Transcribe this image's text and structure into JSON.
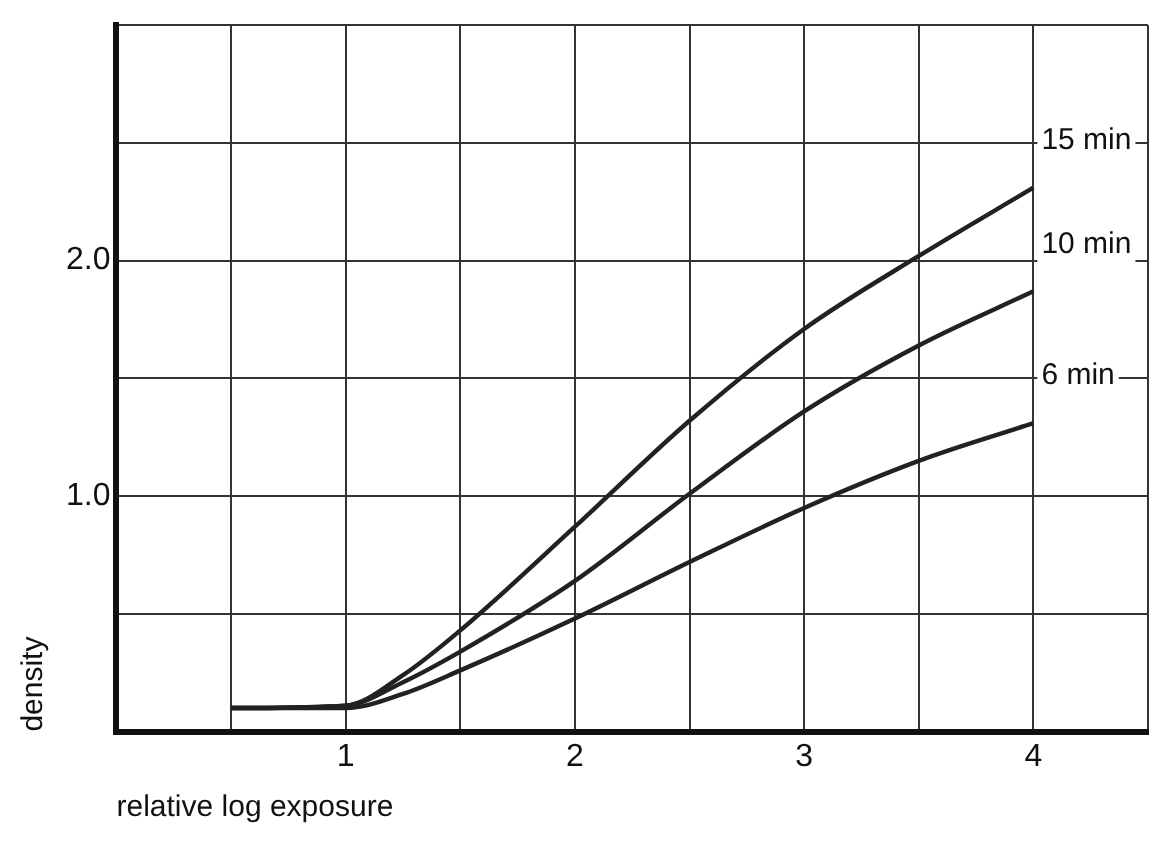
{
  "chart_data": {
    "type": "line",
    "xlabel": "relative log exposure",
    "ylabel": "density",
    "xlim": [
      0,
      4.5
    ],
    "ylim": [
      0,
      3
    ],
    "xticks": [
      {
        "value": 0,
        "label": null
      },
      {
        "value": 0.5,
        "label": null
      },
      1,
      {
        "value": 1.5,
        "label": null
      },
      2,
      {
        "value": 2.5,
        "label": null
      },
      3,
      {
        "value": 3.5,
        "label": null
      },
      4,
      {
        "value": 4.5,
        "label": null
      }
    ],
    "yticks": [
      {
        "value": 0,
        "label": null
      },
      {
        "value": 0.5,
        "label": null
      },
      {
        "value": 1,
        "label": "1.0"
      },
      {
        "value": 1.5,
        "label": null
      },
      {
        "value": 2,
        "label": "2.0"
      },
      {
        "value": 2.5,
        "label": null
      },
      {
        "value": 3,
        "label": null
      }
    ],
    "x": [
      0.5,
      1,
      1.25,
      1.5,
      2,
      2.5,
      3,
      3.5,
      4
    ],
    "grid": true,
    "legend": false,
    "marker": "none",
    "line_style": "solid",
    "series": [
      {
        "name": "15 min",
        "color": "#222222",
        "values": [
          0.1,
          0.11,
          0.24,
          0.43,
          0.87,
          1.32,
          1.71,
          2.02,
          2.31
        ]
      },
      {
        "name": "10 min",
        "color": "#222222",
        "values": [
          0.1,
          0.11,
          0.21,
          0.34,
          0.64,
          1.01,
          1.36,
          1.64,
          1.87
        ]
      },
      {
        "name": "6 min",
        "color": "#222222",
        "values": [
          0.1,
          0.1,
          0.16,
          0.26,
          0.48,
          0.72,
          0.95,
          1.15,
          1.31
        ]
      }
    ]
  }
}
